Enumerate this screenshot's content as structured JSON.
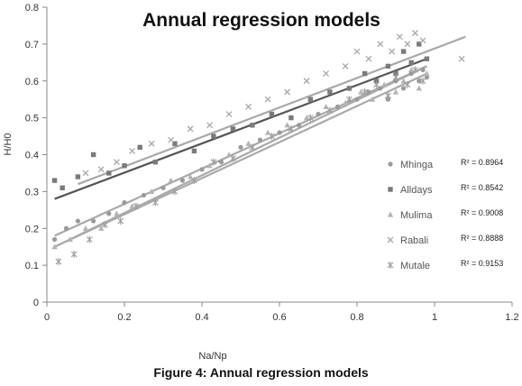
{
  "figure": {
    "caption": "Figure 4: Annual regression models"
  },
  "chart_data": {
    "type": "scatter",
    "title": "Annual regression models",
    "xlabel": "Na/Np",
    "ylabel": "H/H0",
    "xlim": [
      0,
      1.2
    ],
    "ylim": [
      0,
      0.8
    ],
    "x_ticks": [
      0,
      0.2,
      0.4,
      0.6,
      0.8,
      1,
      1.2
    ],
    "x_tick_labels": [
      "0",
      "0.2",
      "0.4",
      "0.6",
      "0.8",
      "1",
      "1.2"
    ],
    "y_ticks": [
      0,
      0.1,
      0.2,
      0.3,
      0.4,
      0.5,
      0.6,
      0.7,
      0.8
    ],
    "y_tick_labels": [
      "0",
      "0.1",
      "0.2",
      "0.3",
      "0.4",
      "0.5",
      "0.6",
      "0.7",
      "0.8"
    ],
    "grid": false,
    "legend_position": "right",
    "series": [
      {
        "name": "Mhinga",
        "marker": "circle",
        "color": "#9a9a9a",
        "r2_label": "R² = 0.8964",
        "trend": {
          "x": [
            0.02,
            0.98
          ],
          "y": [
            0.18,
            0.64
          ]
        },
        "points": {
          "x": [
            0.02,
            0.05,
            0.08,
            0.12,
            0.16,
            0.2,
            0.25,
            0.3,
            0.35,
            0.4,
            0.45,
            0.5,
            0.55,
            0.6,
            0.65,
            0.7,
            0.75,
            0.8,
            0.83,
            0.86,
            0.88,
            0.9,
            0.92,
            0.94,
            0.96,
            0.97,
            0.98
          ],
          "y": [
            0.17,
            0.2,
            0.22,
            0.22,
            0.24,
            0.27,
            0.29,
            0.31,
            0.33,
            0.36,
            0.38,
            0.42,
            0.44,
            0.46,
            0.48,
            0.51,
            0.53,
            0.55,
            0.57,
            0.58,
            0.55,
            0.6,
            0.58,
            0.62,
            0.6,
            0.63,
            0.61
          ]
        }
      },
      {
        "name": "Alldays",
        "marker": "square",
        "color": "#7a7a7a",
        "r2_label": "R² = 0.8542",
        "trend": {
          "x": [
            0.02,
            0.98
          ],
          "y": [
            0.28,
            0.66
          ]
        },
        "points": {
          "x": [
            0.02,
            0.04,
            0.08,
            0.12,
            0.16,
            0.2,
            0.24,
            0.28,
            0.33,
            0.38,
            0.43,
            0.48,
            0.53,
            0.58,
            0.63,
            0.68,
            0.73,
            0.78,
            0.82,
            0.85,
            0.88,
            0.9,
            0.92,
            0.94,
            0.96,
            0.98
          ],
          "y": [
            0.33,
            0.31,
            0.34,
            0.4,
            0.35,
            0.37,
            0.42,
            0.38,
            0.43,
            0.41,
            0.45,
            0.47,
            0.48,
            0.51,
            0.5,
            0.55,
            0.57,
            0.58,
            0.62,
            0.6,
            0.64,
            0.62,
            0.68,
            0.65,
            0.7,
            0.66
          ]
        }
      },
      {
        "name": "Mulima",
        "marker": "triangle",
        "color": "#b4b4b4",
        "r2_label": "R² = 0.9008",
        "trend": {
          "x": [
            0.02,
            0.98
          ],
          "y": [
            0.15,
            0.62
          ]
        },
        "points": {
          "x": [
            0.02,
            0.06,
            0.1,
            0.14,
            0.18,
            0.22,
            0.27,
            0.32,
            0.37,
            0.42,
            0.47,
            0.52,
            0.57,
            0.62,
            0.67,
            0.72,
            0.77,
            0.81,
            0.84,
            0.87,
            0.9,
            0.92,
            0.94,
            0.96,
            0.98
          ],
          "y": [
            0.15,
            0.17,
            0.2,
            0.2,
            0.24,
            0.26,
            0.3,
            0.33,
            0.34,
            0.37,
            0.4,
            0.43,
            0.46,
            0.48,
            0.5,
            0.53,
            0.54,
            0.57,
            0.55,
            0.59,
            0.57,
            0.6,
            0.63,
            0.58,
            0.62
          ]
        }
      },
      {
        "name": "Rabali",
        "marker": "x",
        "color": "#a8a8a8",
        "r2_label": "R² = 0.8888",
        "trend": {
          "x": [
            0.08,
            1.08
          ],
          "y": [
            0.32,
            0.72
          ]
        },
        "points": {
          "x": [
            0.1,
            0.14,
            0.18,
            0.22,
            0.27,
            0.32,
            0.37,
            0.42,
            0.47,
            0.52,
            0.57,
            0.62,
            0.67,
            0.72,
            0.77,
            0.8,
            0.83,
            0.86,
            0.89,
            0.91,
            0.93,
            0.95,
            0.97,
            1.07
          ],
          "y": [
            0.35,
            0.36,
            0.38,
            0.41,
            0.43,
            0.44,
            0.47,
            0.48,
            0.51,
            0.53,
            0.55,
            0.57,
            0.6,
            0.62,
            0.64,
            0.68,
            0.66,
            0.7,
            0.68,
            0.72,
            0.7,
            0.73,
            0.71,
            0.66
          ]
        }
      },
      {
        "name": "Mutale",
        "marker": "x-star",
        "color": "#a0a0a0",
        "r2_label": "R² = 0.9153",
        "trend": {
          "x": [
            0.02,
            0.98
          ],
          "y": [
            0.15,
            0.64
          ]
        },
        "points": {
          "x": [
            0.03,
            0.07,
            0.11,
            0.15,
            0.19,
            0.23,
            0.28,
            0.33,
            0.38,
            0.43,
            0.48,
            0.53,
            0.58,
            0.63,
            0.68,
            0.73,
            0.78,
            0.82,
            0.85,
            0.88,
            0.9,
            0.93,
            0.95,
            0.97
          ],
          "y": [
            0.11,
            0.13,
            0.17,
            0.21,
            0.22,
            0.26,
            0.27,
            0.3,
            0.33,
            0.38,
            0.39,
            0.42,
            0.45,
            0.47,
            0.5,
            0.52,
            0.55,
            0.57,
            0.59,
            0.56,
            0.61,
            0.59,
            0.63,
            0.6
          ]
        }
      }
    ]
  }
}
